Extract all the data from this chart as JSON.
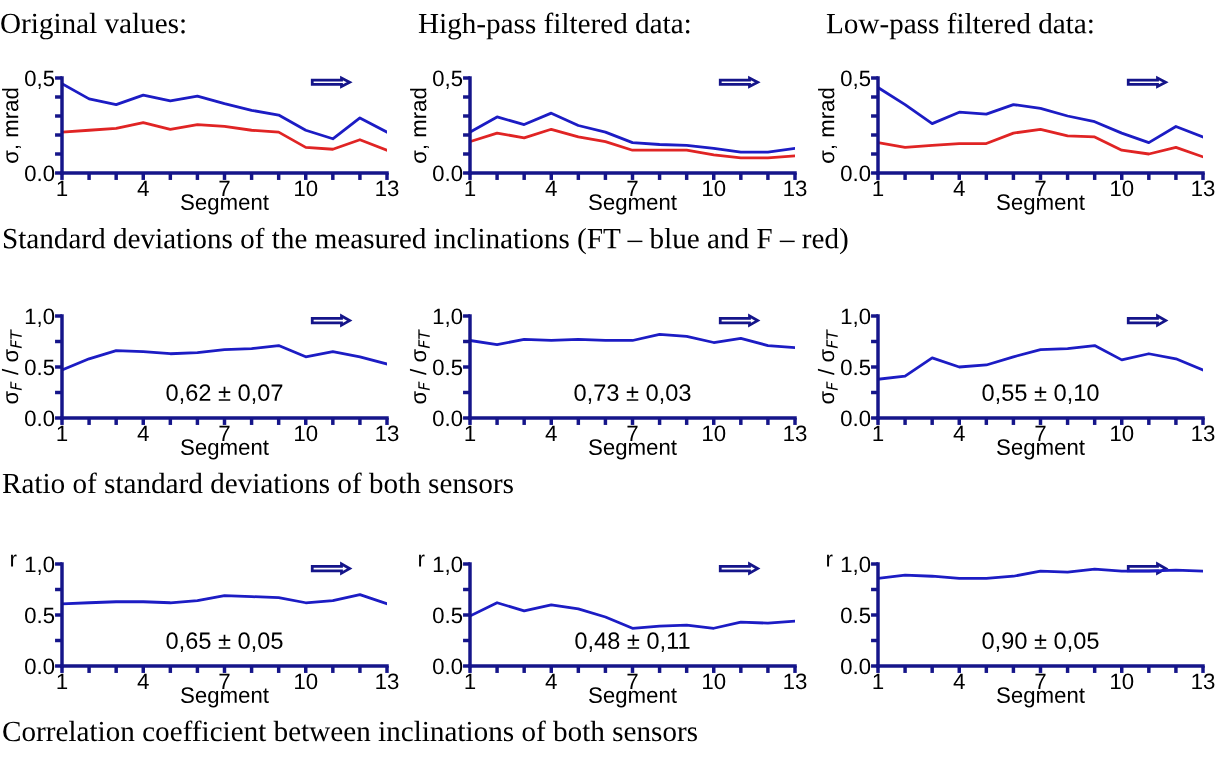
{
  "chart_data": [
    {
      "type": "line",
      "title": "Original values:",
      "xlabel": "Segment",
      "ylabel": "σ, mrad",
      "x": [
        1,
        2,
        3,
        4,
        5,
        6,
        7,
        8,
        9,
        10,
        11,
        12,
        13
      ],
      "xlim": [
        1,
        13
      ],
      "xticks": [
        1,
        {
          "value": 2,
          "label": null
        },
        {
          "value": 3,
          "label": null
        },
        4,
        {
          "value": 5,
          "label": null
        },
        {
          "value": 6,
          "label": null
        },
        7,
        {
          "value": 8,
          "label": null
        },
        {
          "value": 9,
          "label": null
        },
        10,
        {
          "value": 11,
          "label": null
        },
        {
          "value": 12,
          "label": null
        },
        13
      ],
      "ylim": [
        0,
        0.5
      ],
      "yticks": [
        {
          "value": 0,
          "label": "0.0"
        },
        {
          "value": 0.1,
          "label": null
        },
        {
          "value": 0.2,
          "label": null
        },
        {
          "value": 0.3,
          "label": null
        },
        {
          "value": 0.4,
          "label": null
        },
        {
          "value": 0.5,
          "label": "0,5"
        }
      ],
      "series": [
        {
          "color": "#1c1cc4",
          "values": [
            0.47,
            0.39,
            0.36,
            0.41,
            0.38,
            0.405,
            0.365,
            0.33,
            0.305,
            0.225,
            0.18,
            0.29,
            0.215
          ]
        },
        {
          "color": "#e02424",
          "values": [
            0.215,
            0.225,
            0.235,
            0.265,
            0.23,
            0.255,
            0.245,
            0.225,
            0.215,
            0.135,
            0.125,
            0.175,
            0.12
          ]
        }
      ],
      "annotations": [
        "Standard deviations of the measured inclinations (FT – blue and F – red)"
      ]
    },
    {
      "type": "line",
      "title": "High-pass filtered data:",
      "xlabel": "Segment",
      "ylabel": "σ, mrad",
      "x": [
        1,
        2,
        3,
        4,
        5,
        6,
        7,
        8,
        9,
        10,
        11,
        12,
        13
      ],
      "xlim": [
        1,
        13
      ],
      "xticks": [
        1,
        {
          "value": 2,
          "label": null
        },
        {
          "value": 3,
          "label": null
        },
        4,
        {
          "value": 5,
          "label": null
        },
        {
          "value": 6,
          "label": null
        },
        7,
        {
          "value": 8,
          "label": null
        },
        {
          "value": 9,
          "label": null
        },
        10,
        {
          "value": 11,
          "label": null
        },
        {
          "value": 12,
          "label": null
        },
        13
      ],
      "ylim": [
        0,
        0.5
      ],
      "yticks": [
        {
          "value": 0,
          "label": "0.0"
        },
        {
          "value": 0.1,
          "label": null
        },
        {
          "value": 0.2,
          "label": null
        },
        {
          "value": 0.3,
          "label": null
        },
        {
          "value": 0.4,
          "label": null
        },
        {
          "value": 0.5,
          "label": "0,5"
        }
      ],
      "series": [
        {
          "color": "#1c1cc4",
          "values": [
            0.215,
            0.295,
            0.255,
            0.315,
            0.25,
            0.215,
            0.16,
            0.15,
            0.145,
            0.13,
            0.11,
            0.11,
            0.13
          ]
        },
        {
          "color": "#e02424",
          "values": [
            0.165,
            0.21,
            0.185,
            0.23,
            0.19,
            0.165,
            0.12,
            0.12,
            0.12,
            0.095,
            0.08,
            0.08,
            0.09
          ]
        }
      ]
    },
    {
      "type": "line",
      "title": "Low-pass filtered data:",
      "xlabel": "Segment",
      "ylabel": "σ, mrad",
      "x": [
        1,
        2,
        3,
        4,
        5,
        6,
        7,
        8,
        9,
        10,
        11,
        12,
        13
      ],
      "xlim": [
        1,
        13
      ],
      "xticks": [
        1,
        {
          "value": 2,
          "label": null
        },
        {
          "value": 3,
          "label": null
        },
        4,
        {
          "value": 5,
          "label": null
        },
        {
          "value": 6,
          "label": null
        },
        7,
        {
          "value": 8,
          "label": null
        },
        {
          "value": 9,
          "label": null
        },
        10,
        {
          "value": 11,
          "label": null
        },
        {
          "value": 12,
          "label": null
        },
        13
      ],
      "ylim": [
        0,
        0.5
      ],
      "yticks": [
        {
          "value": 0,
          "label": "0.0"
        },
        {
          "value": 0.1,
          "label": null
        },
        {
          "value": 0.2,
          "label": null
        },
        {
          "value": 0.3,
          "label": null
        },
        {
          "value": 0.4,
          "label": null
        },
        {
          "value": 0.5,
          "label": "0,5"
        }
      ],
      "series": [
        {
          "color": "#1c1cc4",
          "values": [
            0.45,
            0.36,
            0.26,
            0.32,
            0.31,
            0.36,
            0.34,
            0.3,
            0.27,
            0.21,
            0.16,
            0.245,
            0.19
          ]
        },
        {
          "color": "#e02424",
          "values": [
            0.16,
            0.135,
            0.145,
            0.155,
            0.155,
            0.21,
            0.23,
            0.195,
            0.19,
            0.12,
            0.1,
            0.135,
            0.085
          ]
        }
      ]
    },
    {
      "type": "line",
      "xlabel": "Segment",
      "ylabel": "σ$_{F}$ / σ$_{FT}$",
      "x": [
        1,
        2,
        3,
        4,
        5,
        6,
        7,
        8,
        9,
        10,
        11,
        12,
        13
      ],
      "xlim": [
        1,
        13
      ],
      "xticks": [
        1,
        {
          "value": 2,
          "label": null
        },
        {
          "value": 3,
          "label": null
        },
        4,
        {
          "value": 5,
          "label": null
        },
        {
          "value": 6,
          "label": null
        },
        7,
        {
          "value": 8,
          "label": null
        },
        {
          "value": 9,
          "label": null
        },
        10,
        {
          "value": 11,
          "label": null
        },
        {
          "value": 12,
          "label": null
        },
        13
      ],
      "ylim": [
        0,
        1
      ],
      "yticks": [
        {
          "value": 0,
          "label": "0.0"
        },
        {
          "value": 0.25,
          "label": null
        },
        {
          "value": 0.5,
          "label": "0.5"
        },
        {
          "value": 0.75,
          "label": null
        },
        {
          "value": 1,
          "label": "1,0"
        }
      ],
      "series": [
        {
          "color": "#1c1cc4",
          "values": [
            0.47,
            0.58,
            0.66,
            0.65,
            0.63,
            0.64,
            0.67,
            0.68,
            0.71,
            0.6,
            0.65,
            0.6,
            0.53
          ]
        }
      ],
      "annotations": [
        "0,62 ± 0,07",
        "Ratio of standard deviations of both sensors"
      ]
    },
    {
      "type": "line",
      "xlabel": "Segment",
      "ylabel": "σ$_{F}$ / σ$_{FT}$",
      "x": [
        1,
        2,
        3,
        4,
        5,
        6,
        7,
        8,
        9,
        10,
        11,
        12,
        13
      ],
      "xlim": [
        1,
        13
      ],
      "xticks": [
        1,
        {
          "value": 2,
          "label": null
        },
        {
          "value": 3,
          "label": null
        },
        4,
        {
          "value": 5,
          "label": null
        },
        {
          "value": 6,
          "label": null
        },
        7,
        {
          "value": 8,
          "label": null
        },
        {
          "value": 9,
          "label": null
        },
        10,
        {
          "value": 11,
          "label": null
        },
        {
          "value": 12,
          "label": null
        },
        13
      ],
      "ylim": [
        0,
        1
      ],
      "yticks": [
        {
          "value": 0,
          "label": "0.0"
        },
        {
          "value": 0.25,
          "label": null
        },
        {
          "value": 0.5,
          "label": "0.5"
        },
        {
          "value": 0.75,
          "label": null
        },
        {
          "value": 1,
          "label": "1,0"
        }
      ],
      "series": [
        {
          "color": "#1c1cc4",
          "values": [
            0.76,
            0.72,
            0.77,
            0.76,
            0.77,
            0.76,
            0.76,
            0.82,
            0.8,
            0.74,
            0.78,
            0.71,
            0.69
          ]
        }
      ],
      "annotations": [
        "0,73 ± 0,03"
      ]
    },
    {
      "type": "line",
      "xlabel": "Segment",
      "ylabel": "σ$_{F}$ / σ$_{FT}$",
      "x": [
        1,
        2,
        3,
        4,
        5,
        6,
        7,
        8,
        9,
        10,
        11,
        12,
        13
      ],
      "xlim": [
        1,
        13
      ],
      "xticks": [
        1,
        {
          "value": 2,
          "label": null
        },
        {
          "value": 3,
          "label": null
        },
        4,
        {
          "value": 5,
          "label": null
        },
        {
          "value": 6,
          "label": null
        },
        7,
        {
          "value": 8,
          "label": null
        },
        {
          "value": 9,
          "label": null
        },
        10,
        {
          "value": 11,
          "label": null
        },
        {
          "value": 12,
          "label": null
        },
        13
      ],
      "ylim": [
        0,
        1
      ],
      "yticks": [
        {
          "value": 0,
          "label": "0.0"
        },
        {
          "value": 0.25,
          "label": null
        },
        {
          "value": 0.5,
          "label": "0.5"
        },
        {
          "value": 0.75,
          "label": null
        },
        {
          "value": 1,
          "label": "1,0"
        }
      ],
      "series": [
        {
          "color": "#1c1cc4",
          "values": [
            0.38,
            0.41,
            0.59,
            0.5,
            0.52,
            0.6,
            0.67,
            0.68,
            0.71,
            0.57,
            0.63,
            0.58,
            0.47
          ]
        }
      ],
      "annotations": [
        "0,55 ± 0,10"
      ]
    },
    {
      "type": "line",
      "xlabel": "Segment",
      "ylabel": "r",
      "x": [
        1,
        2,
        3,
        4,
        5,
        6,
        7,
        8,
        9,
        10,
        11,
        12,
        13
      ],
      "xlim": [
        1,
        13
      ],
      "xticks": [
        1,
        {
          "value": 2,
          "label": null
        },
        {
          "value": 3,
          "label": null
        },
        4,
        {
          "value": 5,
          "label": null
        },
        {
          "value": 6,
          "label": null
        },
        7,
        {
          "value": 8,
          "label": null
        },
        {
          "value": 9,
          "label": null
        },
        10,
        {
          "value": 11,
          "label": null
        },
        {
          "value": 12,
          "label": null
        },
        13
      ],
      "ylim": [
        0,
        1
      ],
      "yticks": [
        {
          "value": 0,
          "label": "0.0"
        },
        {
          "value": 0.25,
          "label": null
        },
        {
          "value": 0.5,
          "label": "0.5"
        },
        {
          "value": 0.75,
          "label": null
        },
        {
          "value": 1,
          "label": "1,0"
        }
      ],
      "series": [
        {
          "color": "#1c1cc4",
          "values": [
            0.61,
            0.62,
            0.63,
            0.63,
            0.62,
            0.64,
            0.69,
            0.68,
            0.67,
            0.62,
            0.64,
            0.7,
            0.61
          ]
        }
      ],
      "annotations": [
        "0,65 ± 0,05",
        "Correlation coefficient between inclinations of both sensors"
      ]
    },
    {
      "type": "line",
      "xlabel": "Segment",
      "ylabel": "r",
      "x": [
        1,
        2,
        3,
        4,
        5,
        6,
        7,
        8,
        9,
        10,
        11,
        12,
        13
      ],
      "xlim": [
        1,
        13
      ],
      "xticks": [
        1,
        {
          "value": 2,
          "label": null
        },
        {
          "value": 3,
          "label": null
        },
        4,
        {
          "value": 5,
          "label": null
        },
        {
          "value": 6,
          "label": null
        },
        7,
        {
          "value": 8,
          "label": null
        },
        {
          "value": 9,
          "label": null
        },
        10,
        {
          "value": 11,
          "label": null
        },
        {
          "value": 12,
          "label": null
        },
        13
      ],
      "ylim": [
        0,
        1
      ],
      "yticks": [
        {
          "value": 0,
          "label": "0.0"
        },
        {
          "value": 0.25,
          "label": null
        },
        {
          "value": 0.5,
          "label": "0.5"
        },
        {
          "value": 0.75,
          "label": null
        },
        {
          "value": 1,
          "label": "1,0"
        }
      ],
      "series": [
        {
          "color": "#1c1cc4",
          "values": [
            0.49,
            0.62,
            0.54,
            0.6,
            0.56,
            0.48,
            0.37,
            0.39,
            0.4,
            0.37,
            0.43,
            0.42,
            0.44
          ]
        }
      ],
      "annotations": [
        "0,48 ± 0,11"
      ]
    },
    {
      "type": "line",
      "xlabel": "Segment",
      "ylabel": "r",
      "x": [
        1,
        2,
        3,
        4,
        5,
        6,
        7,
        8,
        9,
        10,
        11,
        12,
        13
      ],
      "xlim": [
        1,
        13
      ],
      "xticks": [
        1,
        {
          "value": 2,
          "label": null
        },
        {
          "value": 3,
          "label": null
        },
        4,
        {
          "value": 5,
          "label": null
        },
        {
          "value": 6,
          "label": null
        },
        7,
        {
          "value": 8,
          "label": null
        },
        {
          "value": 9,
          "label": null
        },
        10,
        {
          "value": 11,
          "label": null
        },
        {
          "value": 12,
          "label": null
        },
        13
      ],
      "ylim": [
        0,
        1
      ],
      "yticks": [
        {
          "value": 0,
          "label": "0.0"
        },
        {
          "value": 0.25,
          "label": null
        },
        {
          "value": 0.5,
          "label": "0.5"
        },
        {
          "value": 0.75,
          "label": null
        },
        {
          "value": 1,
          "label": "1,0"
        }
      ],
      "series": [
        {
          "color": "#1c1cc4",
          "values": [
            0.86,
            0.89,
            0.88,
            0.86,
            0.86,
            0.88,
            0.93,
            0.92,
            0.95,
            0.93,
            0.93,
            0.94,
            0.93
          ]
        }
      ],
      "annotations": [
        "0,90 ± 0,05"
      ]
    }
  ]
}
